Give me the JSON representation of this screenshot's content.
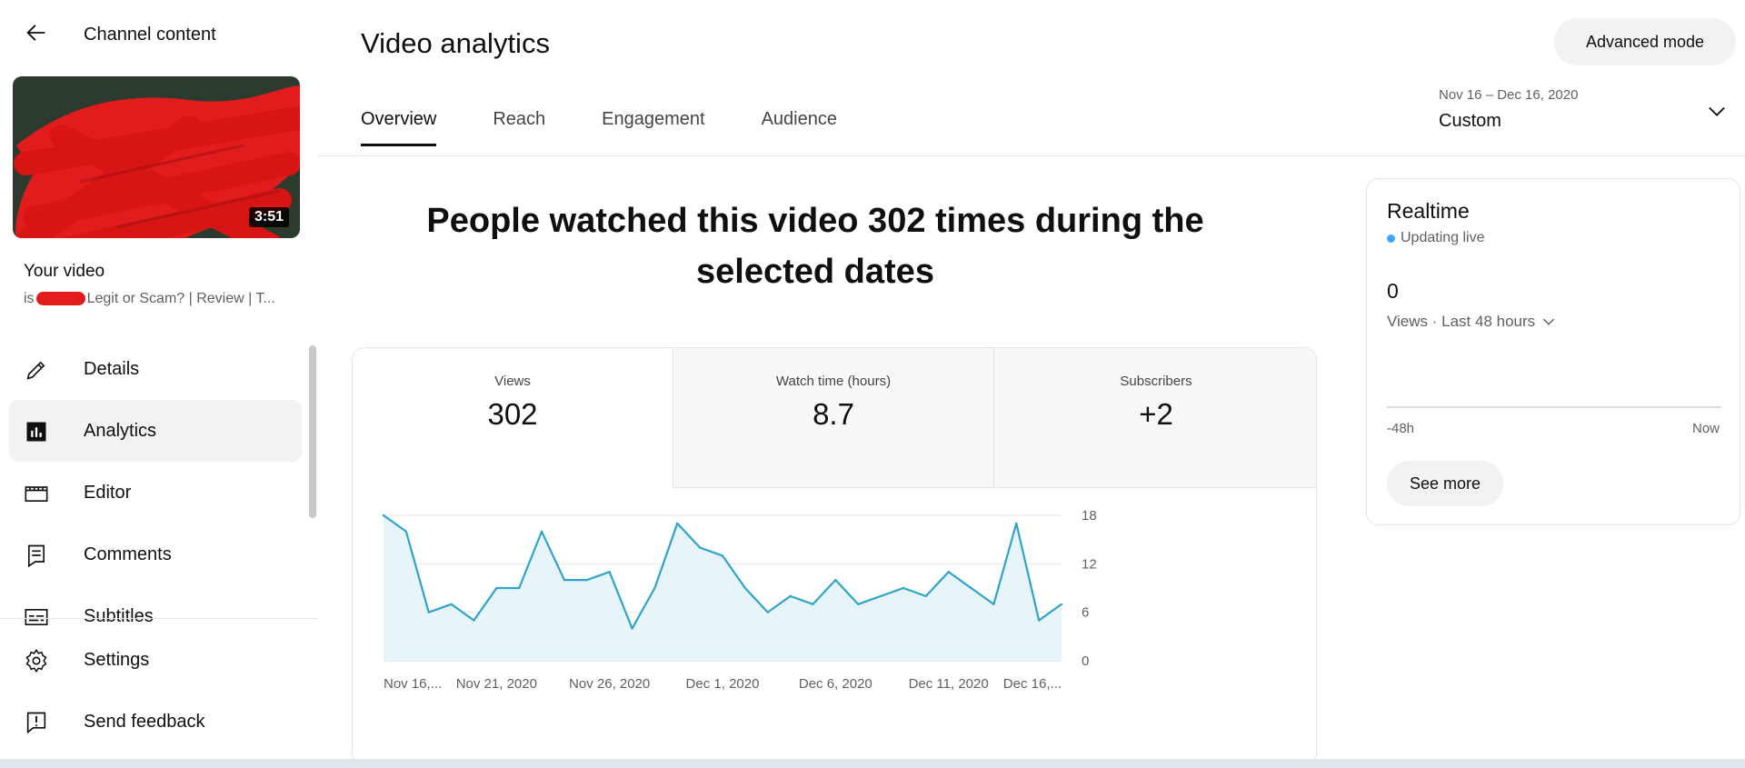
{
  "sidebar": {
    "back_title": "Channel content",
    "thumbnail_duration": "3:51",
    "your_video_label": "Your video",
    "video_title_prefix": "is",
    "video_title_suffix": "Legit or Scam? | Review | T...",
    "nav_items": [
      {
        "label": "Details",
        "icon": "pencil-icon"
      },
      {
        "label": "Analytics",
        "icon": "analytics-icon",
        "active": true
      },
      {
        "label": "Editor",
        "icon": "editor-icon"
      },
      {
        "label": "Comments",
        "icon": "comments-icon"
      },
      {
        "label": "Subtitles",
        "icon": "subtitles-icon"
      }
    ],
    "bottom_items": [
      {
        "label": "Settings",
        "icon": "gear-icon"
      },
      {
        "label": "Send feedback",
        "icon": "feedback-icon"
      }
    ]
  },
  "header": {
    "title": "Video analytics",
    "advanced_mode_label": "Advanced mode",
    "tabs": [
      "Overview",
      "Reach",
      "Engagement",
      "Audience"
    ],
    "active_tab": "Overview",
    "date_range": "Nov 16 – Dec 16, 2020",
    "date_preset": "Custom"
  },
  "main": {
    "headline": "People watched this video 302 times during the selected dates",
    "metrics": [
      {
        "label": "Views",
        "value": "302",
        "active": true
      },
      {
        "label": "Watch time (hours)",
        "value": "8.7"
      },
      {
        "label": "Subscribers",
        "value": "+2"
      }
    ]
  },
  "chart_data": {
    "type": "area",
    "x_tick_labels": [
      "Nov 16,...",
      "Nov 21, 2020",
      "Nov 26, 2020",
      "Dec 1, 2020",
      "Dec 6, 2020",
      "Dec 11, 2020",
      "Dec 16,..."
    ],
    "x": [
      "Nov 16",
      "Nov 17",
      "Nov 18",
      "Nov 19",
      "Nov 20",
      "Nov 21",
      "Nov 22",
      "Nov 23",
      "Nov 24",
      "Nov 25",
      "Nov 26",
      "Nov 27",
      "Nov 28",
      "Nov 29",
      "Nov 30",
      "Dec 1",
      "Dec 2",
      "Dec 3",
      "Dec 4",
      "Dec 5",
      "Dec 6",
      "Dec 7",
      "Dec 8",
      "Dec 9",
      "Dec 10",
      "Dec 11",
      "Dec 12",
      "Dec 13",
      "Dec 14",
      "Dec 15",
      "Dec 16"
    ],
    "series": [
      {
        "values": [
          18,
          16,
          6,
          7,
          5,
          9,
          9,
          16,
          10,
          10,
          11,
          4,
          9,
          17,
          14,
          13,
          9,
          6,
          8,
          7,
          10,
          7,
          8,
          9,
          8,
          11,
          9,
          7,
          17,
          5,
          7
        ]
      }
    ],
    "y_ticks": [
      0,
      6,
      12,
      18
    ],
    "ylim": [
      0,
      18
    ],
    "grid": true,
    "colors": {
      "line": "#2fa4c8",
      "fill": "#e7f4fa",
      "grid": "#e5e5e5"
    }
  },
  "realtime": {
    "title": "Realtime",
    "status": "Updating live",
    "value": "0",
    "subtitle": "Views · Last 48 hours",
    "axis_left": "-48h",
    "axis_right": "Now",
    "button_label": "See more"
  }
}
